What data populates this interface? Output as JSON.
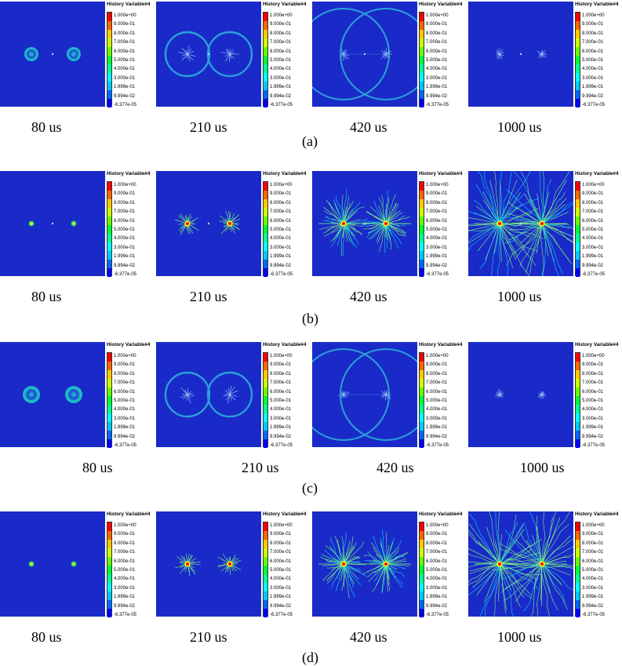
{
  "colorbar": {
    "title": "History Variable#4",
    "ticks": [
      "1.000e+00",
      "9.000e-01",
      "8.000e-01",
      "7.000e-01",
      "6.000e-01",
      "5.000e-01",
      "4.000e-01",
      "3.000e-01",
      "1.999e-01",
      "9.994e-02",
      "-6.377e-05"
    ],
    "colors": [
      "#ff0000",
      "#ff6600",
      "#ffc800",
      "#ccff00",
      "#66ff00",
      "#00ff33",
      "#00ff99",
      "#00ffff",
      "#00c8ff",
      "#0066ff",
      "#0000ff"
    ]
  },
  "background_color": "#1a2ac8",
  "panels": [
    {
      "caption": "(a)",
      "times": [
        "80 us",
        "210 us",
        "420 us",
        "1000 us"
      ]
    },
    {
      "caption": "(b)",
      "times": [
        "80 us",
        "210 us",
        "420 us",
        "1000 us"
      ]
    },
    {
      "caption": "(c)",
      "times": [
        "80 us",
        "210 us",
        "420 us",
        "1000 us"
      ]
    },
    {
      "caption": "(d)",
      "times": [
        "80 us",
        "210 us",
        "420 us",
        "1000 us"
      ]
    }
  ]
}
